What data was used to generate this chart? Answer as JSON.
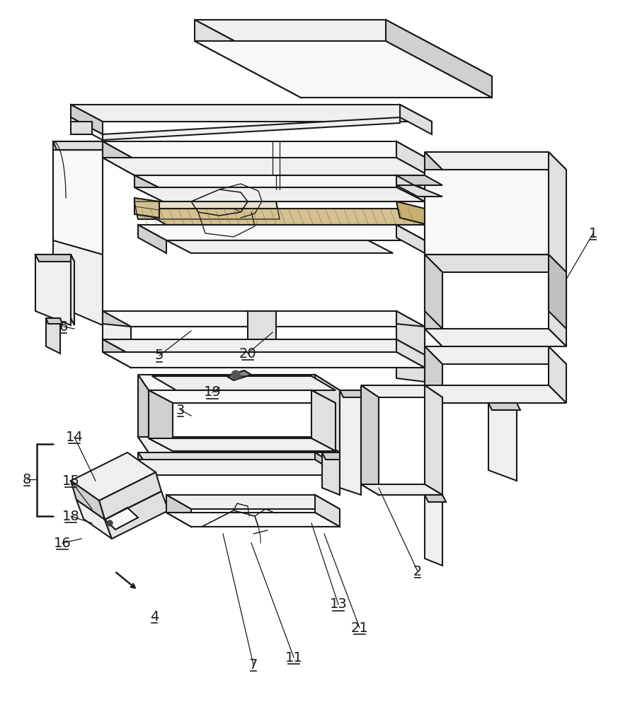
{
  "bg": "#ffffff",
  "lc": "#1a1a1a",
  "lw": 1.5,
  "tlw": 0.9,
  "fig_w": 8.9,
  "fig_h": 10.0,
  "dpi": 100
}
